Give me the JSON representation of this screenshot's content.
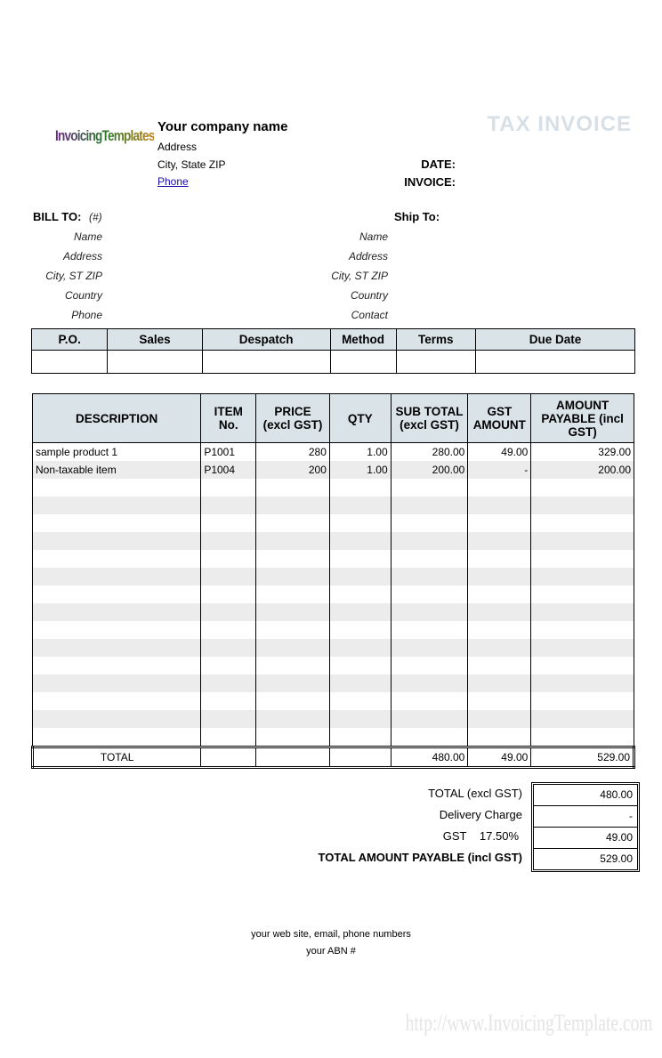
{
  "logo": "InvoicingTemplates",
  "company": {
    "name": "Your company name",
    "address": "Address",
    "city": "City, State ZIP",
    "phone": "Phone"
  },
  "title": "TAX INVOICE",
  "meta": {
    "date_label": "DATE:",
    "invoice_label": "INVOICE:"
  },
  "bill_to": {
    "label": "BILL TO:",
    "hash": "(#)",
    "fields": [
      "Name",
      "Address",
      "City, ST ZIP",
      "Country",
      "Phone"
    ]
  },
  "ship_to": {
    "label": "Ship To:",
    "fields": [
      "Name",
      "Address",
      "City, ST ZIP",
      "Country",
      "Contact"
    ]
  },
  "order_headers": [
    "P.O.",
    "Sales",
    "Despatch",
    "Method",
    "Terms",
    "Due Date"
  ],
  "item_headers": [
    "DESCRIPTION",
    "ITEM No.",
    "PRICE (excl GST)",
    "QTY",
    "SUB TOTAL (excl GST)",
    "GST AMOUNT",
    "AMOUNT PAYABLE (incl GST)"
  ],
  "items": [
    [
      "sample product 1",
      "P1001",
      "280",
      "1.00",
      "280.00",
      "49.00",
      "329.00"
    ],
    [
      "Non-taxable  item",
      "P1004",
      "200",
      "1.00",
      "200.00",
      "-",
      "200.00"
    ]
  ],
  "totals_row": {
    "label": "TOTAL",
    "subtotal": "480.00",
    "gst": "49.00",
    "payable": "529.00"
  },
  "summary": {
    "total_excl_label": "TOTAL (excl GST)",
    "total_excl": "480.00",
    "delivery_label": "Delivery Charge",
    "delivery": "-",
    "gst_label": "GST",
    "gst_rate": "17.50%",
    "gst": "49.00",
    "total_label": "TOTAL AMOUNT PAYABLE (incl GST)",
    "total": "529.00"
  },
  "footer": {
    "contact": "your web site, email, phone numbers",
    "abn": "your ABN #"
  },
  "watermark": "http://www.InvoicingTemplate.com",
  "colors": {
    "header_bg": "#d9e3e8",
    "title": "#d6e0e6",
    "stripe": "#ececec",
    "link": "#1a0dab"
  }
}
